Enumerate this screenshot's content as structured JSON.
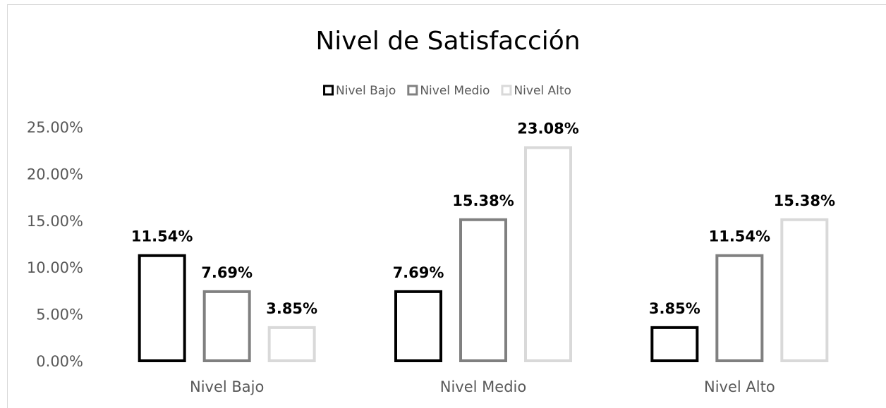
{
  "chart_data": {
    "type": "bar",
    "title": "Nivel de Satisfacción",
    "categories": [
      "Nivel Bajo",
      "Nivel Medio",
      "Nivel Alto"
    ],
    "series": [
      {
        "name": "Nivel Bajo",
        "color": "#000000",
        "values": [
          11.54,
          7.69,
          3.85
        ],
        "value_labels": [
          "11.54%",
          "7.69%",
          "3.85%"
        ]
      },
      {
        "name": "Nivel Medio",
        "color": "#808080",
        "values": [
          7.69,
          15.38,
          11.54
        ],
        "value_labels": [
          "7.69%",
          "15.38%",
          "11.54%"
        ]
      },
      {
        "name": "Nivel Alto",
        "color": "#d9d9d9",
        "values": [
          3.85,
          23.08,
          15.38
        ],
        "value_labels": [
          "3.85%",
          "23.08%",
          "15.38%"
        ]
      }
    ],
    "ylim": [
      0,
      25
    ],
    "yticks": [
      {
        "value": 0,
        "label": "0.00%"
      },
      {
        "value": 5,
        "label": "5.00%"
      },
      {
        "value": 10,
        "label": "10.00%"
      },
      {
        "value": 15,
        "label": "15.00%"
      },
      {
        "value": 20,
        "label": "20.00%"
      },
      {
        "value": 25,
        "label": "25.00%"
      }
    ],
    "grid": false,
    "legend": "top"
  }
}
